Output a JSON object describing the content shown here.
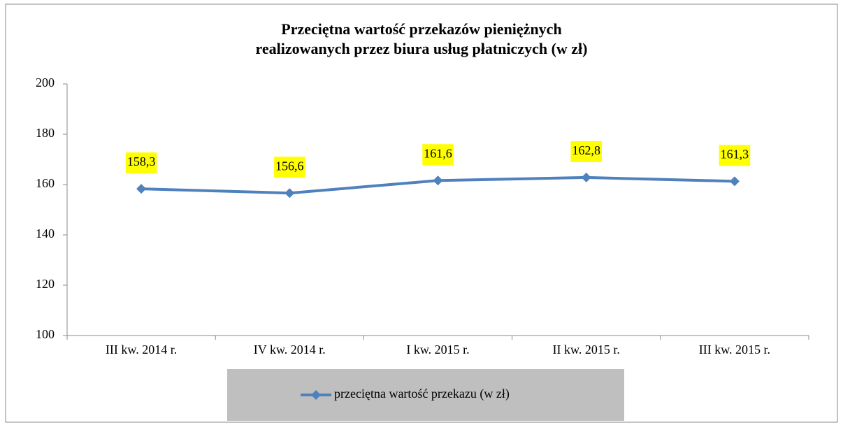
{
  "chart_data": {
    "type": "line",
    "title": "Przeciętna wartość przekazów pieniężnych\nrealizowanych przez biura usług płatniczych (w zł)",
    "categories": [
      "III kw. 2014 r.",
      "IV kw. 2014 r.",
      "I kw. 2015 r.",
      "II kw. 2015 r.",
      "III kw. 2015 r."
    ],
    "series": [
      {
        "name": "przeciętna wartość przekazu (w zł)",
        "color": "#4f81bd",
        "values": [
          158.3,
          156.6,
          161.6,
          162.8,
          161.3
        ],
        "value_labels": [
          "158,3",
          "156,6",
          "161,6",
          "162,8",
          "161,3"
        ]
      }
    ],
    "ylim": [
      100,
      200
    ],
    "yticks": [
      100,
      120,
      140,
      160,
      180,
      200
    ],
    "grid": false,
    "label_color": "#ffff00",
    "legend": "bottom"
  }
}
